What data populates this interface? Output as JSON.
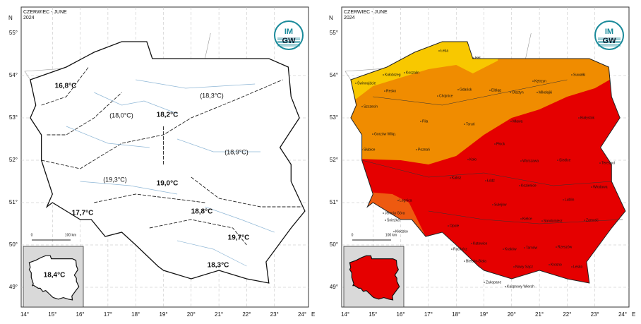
{
  "axes": {
    "north": "N",
    "east": "E",
    "latitudes": [
      "55°",
      "54°",
      "53°",
      "52°",
      "51°",
      "50°",
      "49°"
    ],
    "longitudes": [
      "14°",
      "15°",
      "16°",
      "17°",
      "18°",
      "19°",
      "20°",
      "21°",
      "22°",
      "23°",
      "24°"
    ]
  },
  "left_map": {
    "header": {
      "month": "CZERWIEC - JUNE",
      "year": "2024"
    },
    "logo": {
      "top": "IM",
      "bottom": "GW"
    },
    "scale": {
      "start": "0",
      "end": "100 km"
    },
    "temperature_labels": [
      "16,8°C",
      "(18,3°C)",
      "(18,0°C)",
      "18,2°C",
      "(18,9°C)",
      "(19,3°C)",
      "19,0°C",
      "17,7°C",
      "18,8°C",
      "19,7°C",
      "18,3°C"
    ],
    "inset_label": "18,4°C"
  },
  "right_map": {
    "header": {
      "month": "CZERWIEC - JUNE",
      "year": "2024"
    },
    "logo": {
      "top": "IM",
      "bottom": "GW"
    },
    "scale": {
      "start": "0",
      "end": "100 km"
    },
    "cities": [
      "Łeba",
      "Hel",
      "Koszalin",
      "Kołobrzeg",
      "Świnoujście",
      "Gdańsk",
      "Elbląg",
      "Kętrzyn",
      "Suwałki",
      "Resko",
      "Chojnice",
      "Olsztyn",
      "Mikołajki",
      "Szczecin",
      "Piła",
      "Toruń",
      "Mława",
      "Białystok",
      "Gorzów Wlkp.",
      "Płock",
      "Słubice",
      "Poznań",
      "Koło",
      "Warszawa",
      "Siedlce",
      "Terespol",
      "Kalisz",
      "Łódź",
      "Legnica",
      "Kozienice",
      "Lublin",
      "Jelenia Góra",
      "Śnieżka",
      "Opole",
      "Kłodzko",
      "Sulejów",
      "Włodawa",
      "Racibórz",
      "Katowice",
      "Kielce",
      "Sandomierz",
      "Zamość",
      "Tarnów",
      "Rzeszów",
      "Kraków",
      "Bielsko-Biała",
      "Nowy Sącz",
      "Krosno",
      "Lesko",
      "Zakopane",
      "Kasprowy Wierch"
    ]
  }
}
